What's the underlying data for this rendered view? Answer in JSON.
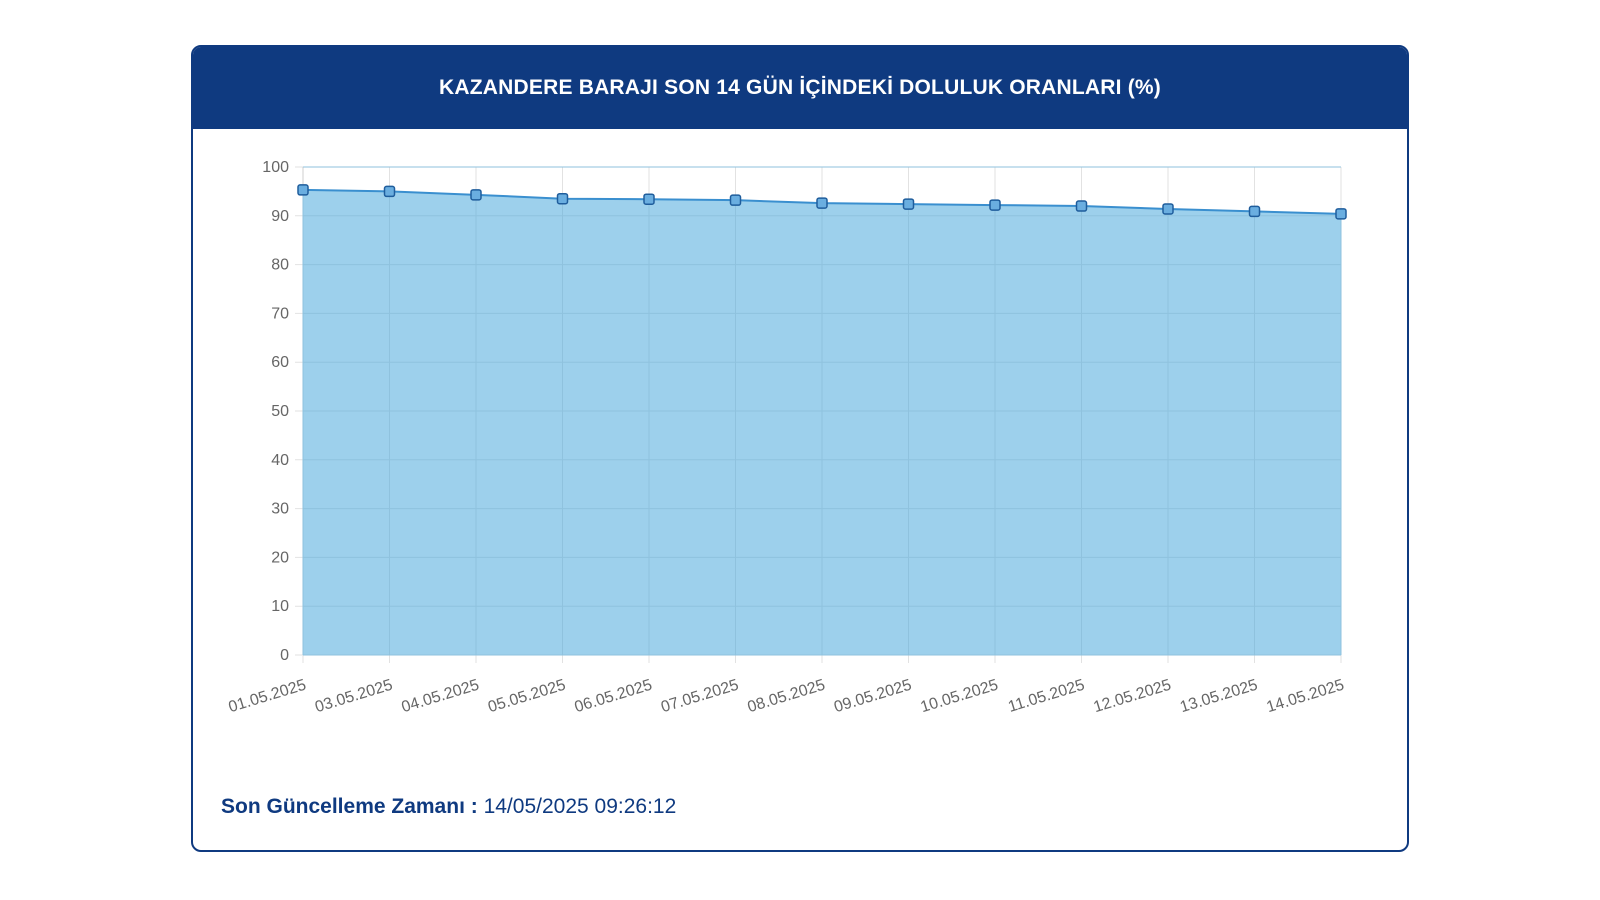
{
  "header": {
    "title": "KAZANDERE BARAJI SON 14 GÜN İÇİNDEKİ DOLULUK ORANLARI (%)"
  },
  "footer": {
    "label": "Son Güncelleme Zamanı :",
    "value": "14/05/2025 09:26:12"
  },
  "colors": {
    "header_bg": "#0f3a80",
    "area_fill": "#9dd0ec",
    "line": "#3a8fcf",
    "marker_fill": "#6aaee0",
    "marker_stroke": "#1f5d9c"
  },
  "chart_data": {
    "type": "area",
    "categories": [
      "01.05.2025",
      "03.05.2025",
      "04.05.2025",
      "05.05.2025",
      "06.05.2025",
      "07.05.2025",
      "08.05.2025",
      "09.05.2025",
      "10.05.2025",
      "11.05.2025",
      "12.05.2025",
      "13.05.2025",
      "14.05.2025"
    ],
    "series": [
      {
        "values": [
          95.3,
          95.0,
          94.3,
          93.5,
          93.4,
          93.2,
          92.6,
          92.4,
          92.2,
          92.0,
          91.4,
          90.9,
          90.4
        ]
      }
    ],
    "ylim": [
      0,
      100
    ],
    "yticks": [
      0,
      10,
      20,
      30,
      40,
      50,
      60,
      70,
      80,
      90,
      100
    ],
    "grid": true,
    "legend": "none"
  }
}
